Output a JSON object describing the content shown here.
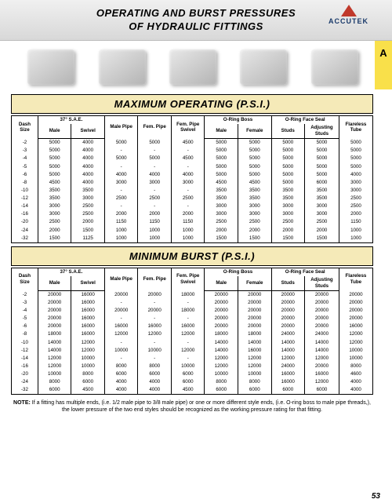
{
  "header": {
    "title_line1": "OPERATING AND BURST PRESSURES",
    "title_line2": "OF HYDRAULIC FITTINGS",
    "brand": "ACCUTEK"
  },
  "side_tab": "A",
  "page_number": "53",
  "section1_title": "MAXIMUM OPERATING (P.S.I.)",
  "section2_title": "MINIMUM BURST (P.S.I.)",
  "columns": {
    "groups": [
      "",
      "37° S.A.E.",
      "",
      "",
      "",
      "O-Ring Boss",
      "O-Ring Face Seal",
      ""
    ],
    "labels": [
      "Dash Size",
      "Male",
      "Swivel",
      "Male Pipe",
      "Fem. Pipe",
      "Fem. Pipe Swivel",
      "Male",
      "Female",
      "Studs",
      "Adjusting Studs",
      "Flareless Tube"
    ]
  },
  "operating_rows": [
    [
      "-2",
      "5000",
      "4000",
      "5000",
      "5000",
      "4500",
      "5000",
      "5000",
      "5000",
      "5000",
      "5000"
    ],
    [
      "-3",
      "5000",
      "4000",
      "-",
      "-",
      "-",
      "5000",
      "5000",
      "5000",
      "5000",
      "5000"
    ],
    [
      "-4",
      "5000",
      "4000",
      "5000",
      "5000",
      "4500",
      "5000",
      "5000",
      "5000",
      "5000",
      "5000"
    ],
    [
      "-5",
      "5000",
      "4000",
      "-",
      "-",
      "-",
      "5000",
      "5000",
      "5000",
      "5000",
      "5000"
    ],
    [
      "-6",
      "5000",
      "4000",
      "4000",
      "4000",
      "4000",
      "5000",
      "5000",
      "5000",
      "5000",
      "4000"
    ],
    [
      "-8",
      "4500",
      "4000",
      "3000",
      "3000",
      "3000",
      "4500",
      "4500",
      "5000",
      "6000",
      "3000"
    ],
    [
      "-10",
      "3500",
      "3500",
      "-",
      "-",
      "-",
      "3500",
      "3500",
      "3500",
      "3500",
      "3000"
    ],
    [
      "-12",
      "3500",
      "3000",
      "2500",
      "2500",
      "2500",
      "3500",
      "3500",
      "3500",
      "3500",
      "2500"
    ],
    [
      "-14",
      "3000",
      "2500",
      "-",
      "-",
      "-",
      "3000",
      "3000",
      "3000",
      "3000",
      "2500"
    ],
    [
      "-16",
      "3000",
      "2500",
      "2000",
      "2000",
      "2000",
      "3000",
      "3000",
      "3000",
      "3000",
      "2000"
    ],
    [
      "-20",
      "2500",
      "2000",
      "1150",
      "1150",
      "1150",
      "2500",
      "2500",
      "2500",
      "2500",
      "1150"
    ],
    [
      "-24",
      "2000",
      "1500",
      "1000",
      "1000",
      "1000",
      "2000",
      "2000",
      "2000",
      "2000",
      "1000"
    ],
    [
      "-32",
      "1500",
      "1125",
      "1000",
      "1000",
      "1000",
      "1500",
      "1500",
      "1500",
      "1500",
      "1000"
    ]
  ],
  "burst_rows": [
    [
      "-2",
      "20000",
      "16000",
      "20000",
      "20000",
      "18000",
      "20000",
      "20000",
      "20000",
      "20000",
      "20000"
    ],
    [
      "-3",
      "20000",
      "16000",
      "-",
      "-",
      "-",
      "20000",
      "20000",
      "20000",
      "20000",
      "20000"
    ],
    [
      "-4",
      "20000",
      "16000",
      "20000",
      "20000",
      "18000",
      "20000",
      "20000",
      "20000",
      "20000",
      "20000"
    ],
    [
      "-5",
      "20000",
      "16000",
      "-",
      "-",
      "-",
      "20000",
      "20000",
      "20000",
      "20000",
      "20000"
    ],
    [
      "-6",
      "20000",
      "16000",
      "16000",
      "16000",
      "16000",
      "20000",
      "20000",
      "20000",
      "20000",
      "16000"
    ],
    [
      "-8",
      "18000",
      "16000",
      "12000",
      "12000",
      "12000",
      "18000",
      "18000",
      "24000",
      "24000",
      "12000"
    ],
    [
      "-10",
      "14000",
      "12000",
      "-",
      "-",
      "-",
      "14000",
      "14000",
      "14000",
      "14000",
      "12000"
    ],
    [
      "-12",
      "14000",
      "12000",
      "10000",
      "10000",
      "12000",
      "14000",
      "16000",
      "14000",
      "14000",
      "10000"
    ],
    [
      "-14",
      "12000",
      "10000",
      "-",
      "-",
      "-",
      "12000",
      "12000",
      "12000",
      "12000",
      "10000"
    ],
    [
      "-16",
      "12000",
      "10000",
      "8000",
      "8000",
      "10000",
      "12000",
      "12000",
      "24000",
      "20000",
      "8000"
    ],
    [
      "-20",
      "10000",
      "8000",
      "6000",
      "6000",
      "6000",
      "10000",
      "10000",
      "16000",
      "16000",
      "4600"
    ],
    [
      "-24",
      "8000",
      "6000",
      "4000",
      "4000",
      "6000",
      "8000",
      "8000",
      "16000",
      "12000",
      "4000"
    ],
    [
      "-32",
      "6000",
      "4500",
      "4000",
      "4000",
      "4500",
      "6000",
      "6000",
      "6000",
      "6000",
      "4000"
    ]
  ],
  "note": {
    "label": "NOTE:",
    "text": "If a fitting has multiple ends, (i.e. 1/2 male pipe to 3/8 male pipe) or one or more different style ends, (i.e. O-ring boss to male pipe threads,), the lower pressure of the two end styles should be recognized as the working pressure rating for that fitting."
  },
  "colors": {
    "header_grad_top": "#f0f0f0",
    "header_grad_bot": "#d8d8d8",
    "section_bg": "#f5eab8",
    "tab_bg": "#f9e04a",
    "logo_red": "#c0392b",
    "logo_blue": "#1a3a6a"
  }
}
